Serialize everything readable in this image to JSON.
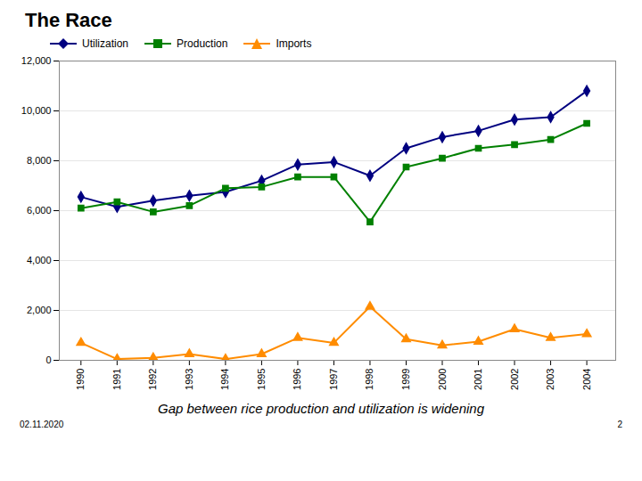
{
  "chart_data": {
    "type": "line",
    "title": "The Race",
    "subtitle": "Gap between rice production and utilization is widening",
    "annotations": [
      "02.11.2020",
      "2"
    ],
    "x": [
      1990,
      1991,
      1992,
      1993,
      1994,
      1995,
      1996,
      1997,
      1998,
      1999,
      2000,
      2001,
      2002,
      2003,
      2004
    ],
    "series": [
      {
        "name": "Utilization",
        "color": "#000080",
        "marker": "diamond",
        "values": [
          6550,
          6150,
          6400,
          6600,
          6750,
          7200,
          7850,
          7950,
          7400,
          8500,
          8950,
          9200,
          9650,
          9750,
          10800
        ]
      },
      {
        "name": "Production",
        "color": "#008000",
        "marker": "square",
        "values": [
          6100,
          6350,
          5950,
          6200,
          6900,
          6950,
          7350,
          7350,
          5550,
          7750,
          8100,
          8500,
          8650,
          8850,
          9500
        ]
      },
      {
        "name": "Imports",
        "color": "#FF8C00",
        "marker": "triangle",
        "values": [
          700,
          50,
          100,
          250,
          50,
          250,
          900,
          700,
          2150,
          850,
          600,
          750,
          1250,
          900,
          1050
        ]
      }
    ],
    "xlim": [
      1989.4,
      2004.8
    ],
    "xticks": [
      1990,
      1991,
      1992,
      1993,
      1994,
      1995,
      1996,
      1997,
      1998,
      1999,
      2000,
      2001,
      2002,
      2003,
      2004
    ],
    "ylim": [
      0,
      12000
    ],
    "yticks": [
      0,
      {
        "value": 2000,
        "label": "2,000"
      },
      {
        "value": 4000,
        "label": "4,000"
      },
      {
        "value": 6000,
        "label": "6,000"
      },
      {
        "value": 8000,
        "label": "8,000"
      },
      {
        "value": 10000,
        "label": "10,000"
      },
      {
        "value": 12000,
        "label": "12,000"
      }
    ],
    "grid": true,
    "legend": "upper left"
  }
}
